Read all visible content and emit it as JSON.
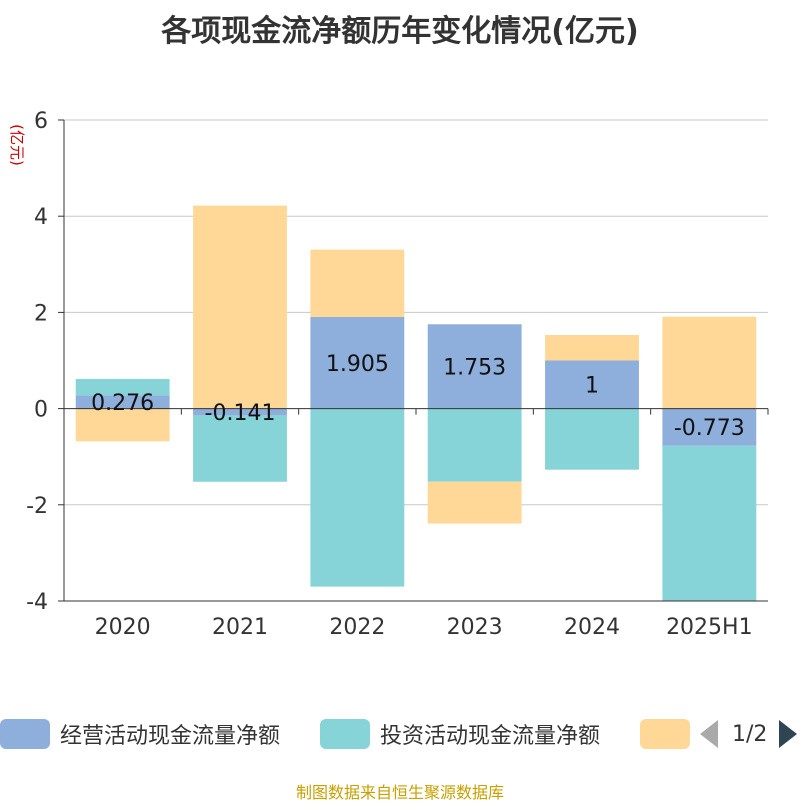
{
  "chart_data": {
    "type": "bar",
    "stacked": true,
    "title": "各项现金流净额历年变化情况(亿元)",
    "unit_label": "(亿元)",
    "categories": [
      "2020",
      "2021",
      "2022",
      "2023",
      "2024",
      "2025H1"
    ],
    "ylim": [
      -4,
      6
    ],
    "yticks": [
      -4,
      -2,
      0,
      2,
      4,
      6
    ],
    "grid": true,
    "legend_position": "bottom",
    "series": [
      {
        "name": "经营活动现金流量净额",
        "color": "#8eaedb",
        "values": [
          0.276,
          -0.141,
          1.905,
          1.753,
          1,
          -0.773
        ],
        "labels": [
          "0.276",
          "-0.141",
          "1.905",
          "1.753",
          "1",
          "-0.773"
        ]
      },
      {
        "name": "投资活动现金流量净额",
        "color": "#86d4d8",
        "values": [
          0.34,
          -1.38,
          -3.7,
          -1.52,
          -1.27,
          -3.22
        ]
      },
      {
        "name": "",
        "color": "#ffd898",
        "values": [
          -0.68,
          4.22,
          1.4,
          -0.87,
          0.53,
          1.91
        ]
      }
    ]
  },
  "legend": {
    "page": "1/2"
  },
  "source_note": "制图数据来自恒生聚源数据库"
}
